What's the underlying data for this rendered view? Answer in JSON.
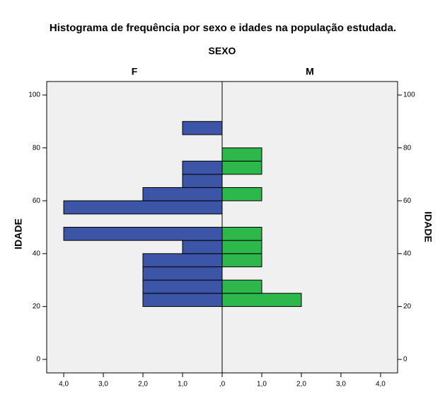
{
  "chart_data": {
    "type": "histogram",
    "title": "Histograma de frequência por sexo e idades na população estudada.",
    "panel_title": "SEXO",
    "ylabel": "IDADE",
    "bins": [
      20,
      25,
      30,
      35,
      40,
      45,
      50,
      55,
      60,
      65,
      70,
      75,
      80,
      85,
      90
    ],
    "series": [
      {
        "name": "F",
        "color": "#3d55a6",
        "values": [
          2,
          2,
          2,
          2,
          1,
          4,
          0,
          4,
          2,
          1,
          1,
          0,
          0,
          1
        ]
      },
      {
        "name": "M",
        "color": "#2eb84b",
        "values": [
          2,
          1,
          0,
          1,
          1,
          1,
          0,
          0,
          1,
          0,
          1,
          1,
          0,
          0
        ]
      }
    ],
    "xlim": [
      0,
      4.43
    ],
    "xticks": [
      {
        "value": 0,
        "label": ",0"
      },
      {
        "value": 1,
        "label": "1,0"
      },
      {
        "value": 2,
        "label": "2,0"
      },
      {
        "value": 3,
        "label": "3,0"
      },
      {
        "value": 4,
        "label": "4,0"
      }
    ],
    "ylim": [
      -5.1,
      105.1
    ],
    "yticks": [
      0,
      20,
      40,
      60,
      80,
      100
    ]
  }
}
